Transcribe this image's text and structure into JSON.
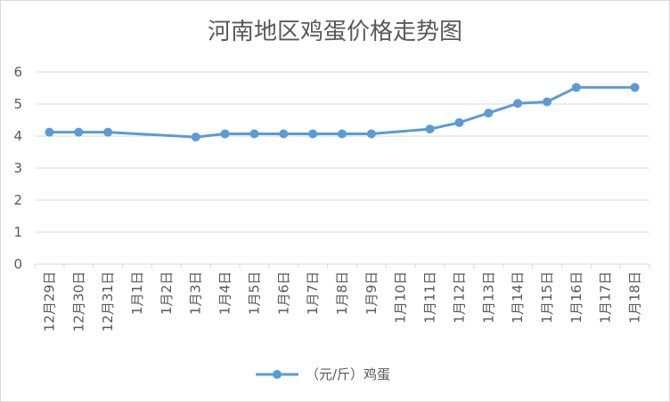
{
  "chart_data": {
    "type": "line",
    "title": "河南地区鸡蛋价格走势图",
    "categories": [
      "12月29日",
      "12月30日",
      "12月31日",
      "1月1日",
      "1月2日",
      "1月3日",
      "1月4日",
      "1月5日",
      "1月6日",
      "1月7日",
      "1月8日",
      "1月9日",
      "1月10日",
      "1月11日",
      "1月12日",
      "1月13日",
      "1月14日",
      "1月15日",
      "1月16日",
      "1月17日",
      "1月18日"
    ],
    "series": [
      {
        "name": "（元/斤）鸡蛋",
        "color": "#5b9bd5",
        "values": [
          4.12,
          4.12,
          4.12,
          null,
          null,
          3.97,
          4.07,
          4.07,
          4.07,
          4.07,
          4.07,
          4.07,
          null,
          4.22,
          4.42,
          4.72,
          5.02,
          5.07,
          5.52,
          null,
          5.52
        ]
      }
    ],
    "ylim": [
      0,
      6
    ],
    "yticks": [
      0,
      1,
      2,
      3,
      4,
      5,
      6
    ],
    "grid": true,
    "legend_position": "bottom"
  }
}
